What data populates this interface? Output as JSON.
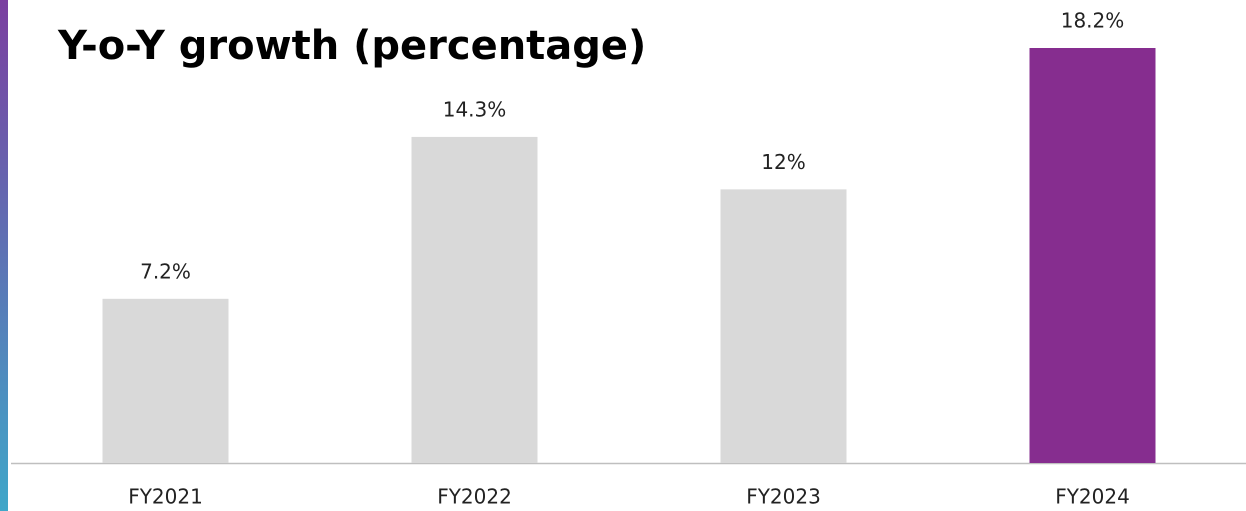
{
  "chart_data": {
    "type": "bar",
    "title": "Y-o-Y growth (percentage)",
    "categories": [
      "FY2021",
      "FY2022",
      "FY2023",
      "FY2024"
    ],
    "values": [
      7.2,
      14.3,
      12,
      18.2
    ],
    "value_labels": [
      "7.2%",
      "14.3%",
      "12%",
      "18.2%"
    ],
    "colors": [
      "#d9d9d9",
      "#d9d9d9",
      "#d9d9d9",
      "#862d8f"
    ]
  }
}
